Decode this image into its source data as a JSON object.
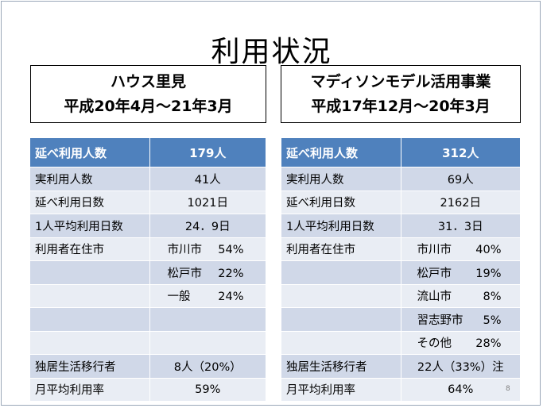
{
  "title": "利用状況",
  "page_number": "8",
  "left": {
    "heading_line1": "ハウス里見",
    "heading_line2": "平成20年4月～21年3月",
    "header_label": "延べ利用人数",
    "header_value": "179人",
    "rows": [
      {
        "label": "実利用人数",
        "value": "41人"
      },
      {
        "label": "延べ利用日数",
        "value": "1021日"
      },
      {
        "label": "1人平均利用日数",
        "value": "24．9日"
      }
    ],
    "residence_label": "利用者在住市",
    "residence": [
      {
        "name": "市川市",
        "pct": "54%"
      },
      {
        "name": "松戸市",
        "pct": "22%"
      },
      {
        "name": "一般",
        "pct": "24%"
      }
    ],
    "solo_label": "独居生活移行者",
    "solo_value": "8人（20%）",
    "monthly_label": "月平均利用率",
    "monthly_value": "59%"
  },
  "right": {
    "heading_line1": "マディソンモデル活用事業",
    "heading_line2": "平成17年12月～20年3月",
    "header_label": "延べ利用人数",
    "header_value": "312人",
    "rows": [
      {
        "label": "実利用人数",
        "value": "69人"
      },
      {
        "label": "延べ利用日数",
        "value": "2162日"
      },
      {
        "label": "1人平均利用日数",
        "value": "31．3日"
      }
    ],
    "residence_label": "利用者在住市",
    "residence": [
      {
        "name": "市川市",
        "pct": "40%"
      },
      {
        "name": "松戸市",
        "pct": "19%"
      },
      {
        "name": "流山市",
        "pct": "8%"
      },
      {
        "name": "習志野市",
        "pct": "5%"
      },
      {
        "name": "その他",
        "pct": "28%"
      }
    ],
    "solo_label": "独居生活移行者",
    "solo_value": "22人（33%）注",
    "monthly_label": "月平均利用率",
    "monthly_value": "64%"
  }
}
